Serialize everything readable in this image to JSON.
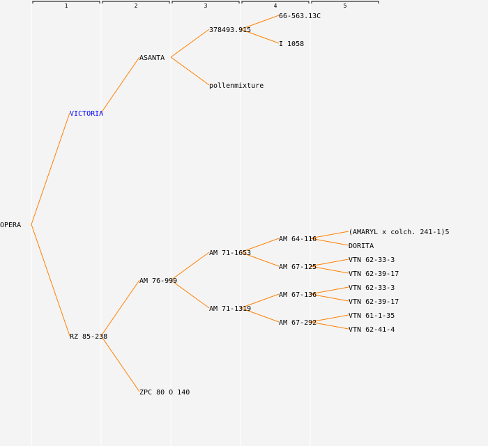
{
  "generations": [
    "1",
    "2",
    "3",
    "4",
    "5"
  ],
  "colors": {
    "line": "#ff8000",
    "text": "#000000",
    "highlight": "#0000ff",
    "background": "#f4f4f4"
  },
  "tree": {
    "name": "OPERA",
    "children": [
      {
        "name": "VICTORIA",
        "highlight": true,
        "children": [
          {
            "name": "ASANTA",
            "children": [
              {
                "name": "378493.915",
                "children": [
                  {
                    "name": "66-563.13C"
                  },
                  {
                    "name": "I 1058"
                  }
                ]
              },
              {
                "name": "pollenmixture"
              }
            ]
          },
          null
        ]
      },
      {
        "name": "RZ 85-238",
        "children": [
          {
            "name": "AM 76-999",
            "children": [
              {
                "name": "AM 71-1653",
                "children": [
                  {
                    "name": "AM 64-116",
                    "children": [
                      {
                        "name": "(AMARYL x colch. 241-1)5"
                      },
                      {
                        "name": "DORITA"
                      }
                    ]
                  },
                  {
                    "name": "AM 67-125",
                    "children": [
                      {
                        "name": "VTN 62-33-3"
                      },
                      {
                        "name": "VTN 62-39-17"
                      }
                    ]
                  }
                ]
              },
              {
                "name": "AM 71-1319",
                "children": [
                  {
                    "name": "AM 67-136",
                    "children": [
                      {
                        "name": "VTN 62-33-3"
                      },
                      {
                        "name": "VTN 62-39-17"
                      }
                    ]
                  },
                  {
                    "name": "AM 67-292",
                    "children": [
                      {
                        "name": "VTN 61-1-35"
                      },
                      {
                        "name": "VTN 62-41-4"
                      }
                    ]
                  }
                ]
              }
            ]
          },
          {
            "name": "ZPC 80 O 140"
          }
        ]
      }
    ]
  }
}
